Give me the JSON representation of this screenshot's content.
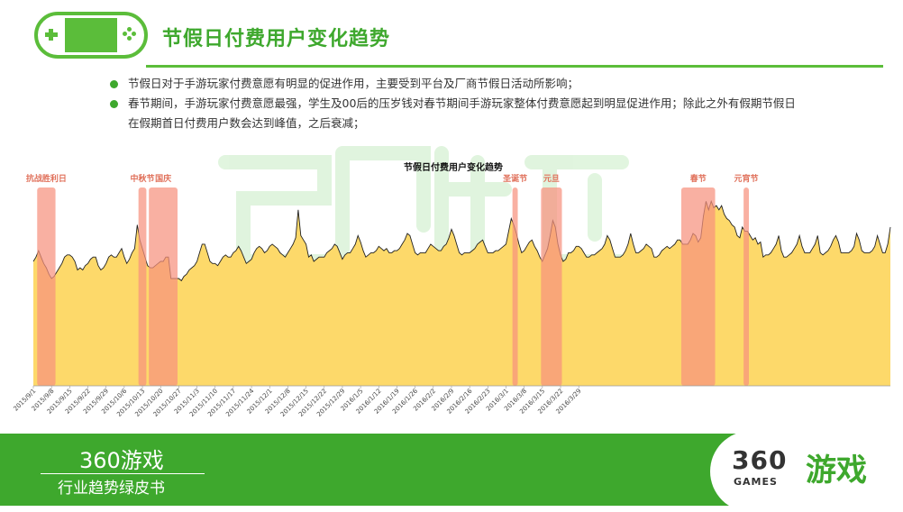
{
  "header": {
    "title": "节假日付费用户变化趋势",
    "bullets": [
      "节假日对于手游玩家付费意愿有明显的促进作用，主要受到平台及厂商节假日活动所影响；",
      "春节期间，手游玩家付费意愿最强，学生及00后的压岁钱对春节期间手游玩家整体付费意愿起到明显促进作用；除此之外有假期节假日",
      "在假期首日付费用户数会达到峰值，之后衰减；"
    ]
  },
  "chart_data": {
    "type": "area",
    "title": "节假日付费用户变化趋势",
    "xlabel": "",
    "ylabel": "",
    "x_ticks": [
      "2015/9/1",
      "2015/9/8",
      "2015/9/15",
      "2015/9/22",
      "2015/9/29",
      "2015/10/6",
      "2015/10/13",
      "2015/10/20",
      "2015/10/27",
      "2015/11/3",
      "2015/11/10",
      "2015/11/17",
      "2015/11/24",
      "2015/12/1",
      "2015/12/8",
      "2015/12/15",
      "2015/12/22",
      "2015/12/29",
      "2016/1/5",
      "2016/1/12",
      "2016/1/19",
      "2016/1/26",
      "2016/2/2",
      "2016/2/9",
      "2016/2/16",
      "2016/2/23",
      "2016/3/1",
      "2016/3/8",
      "2016/3/15",
      "2016/3/22",
      "2016/3/29"
    ],
    "start_date": "2015-09-01",
    "values": [
      58,
      60,
      63,
      60,
      57,
      55,
      52,
      50,
      51,
      53,
      55,
      57,
      60,
      61,
      61,
      60,
      58,
      54,
      55,
      54,
      56,
      57,
      59,
      60,
      60,
      56,
      54,
      55,
      57,
      60,
      61,
      60,
      60,
      62,
      64,
      60,
      57,
      59,
      62,
      64,
      75,
      68,
      64,
      60,
      56,
      55,
      55,
      56,
      57,
      58,
      58,
      60,
      60,
      50,
      50,
      50,
      50,
      49,
      51,
      52,
      54,
      55,
      56,
      58,
      62,
      66,
      66,
      62,
      58,
      57,
      57,
      56,
      58,
      60,
      61,
      60,
      60,
      62,
      63,
      65,
      63,
      60,
      57,
      58,
      59,
      62,
      64,
      65,
      64,
      62,
      63,
      65,
      66,
      65,
      64,
      62,
      61,
      60,
      62,
      64,
      66,
      69,
      82,
      70,
      68,
      66,
      60,
      61,
      58,
      59,
      60,
      60,
      60,
      62,
      63,
      64,
      66,
      65,
      62,
      59,
      61,
      62,
      62,
      64,
      66,
      70,
      67,
      63,
      60,
      61,
      62,
      62,
      63,
      65,
      64,
      63,
      64,
      62,
      62,
      63,
      63,
      64,
      66,
      68,
      71,
      70,
      66,
      62,
      61,
      62,
      62,
      62,
      64,
      66,
      65,
      64,
      63,
      63,
      65,
      66,
      69,
      73,
      70,
      66,
      62,
      61,
      62,
      62,
      62,
      63,
      64,
      66,
      67,
      68,
      65,
      62,
      62,
      62,
      63,
      63,
      64,
      65,
      66,
      72,
      78,
      75,
      71,
      66,
      62,
      63,
      65,
      67,
      68,
      65,
      63,
      60,
      58,
      61,
      64,
      70,
      77,
      74,
      66,
      61,
      58,
      59,
      62,
      62,
      63,
      65,
      65,
      64,
      62,
      60,
      60,
      61,
      61,
      62,
      63,
      64,
      66,
      70,
      68,
      64,
      60,
      60,
      60,
      61,
      63,
      66,
      71,
      66,
      62,
      62,
      63,
      64,
      66,
      65,
      64,
      60,
      60,
      61,
      63,
      64,
      65,
      64,
      65,
      66,
      68,
      68,
      66,
      66,
      66,
      68,
      71,
      70,
      67,
      69,
      79,
      86,
      82,
      86,
      83,
      84,
      82,
      84,
      80,
      78,
      77,
      75,
      74,
      70,
      69,
      74,
      72,
      72,
      70,
      68,
      69,
      66,
      67,
      60,
      61,
      61,
      62,
      64,
      66,
      70,
      63,
      60,
      60,
      61,
      62,
      64,
      66,
      70,
      65,
      62,
      62,
      62,
      64,
      66,
      70,
      62,
      61,
      62,
      63,
      65,
      68,
      70,
      67,
      62,
      62,
      62,
      62,
      63,
      65,
      71,
      68,
      63,
      62,
      62,
      62,
      63,
      65,
      70,
      66,
      62,
      62,
      66,
      74
    ],
    "ylim": [
      0,
      100
    ],
    "holidays": [
      {
        "label": "抗战胜利日",
        "start": 2,
        "end": 8
      },
      {
        "label": "中秋节",
        "start": 41,
        "end": 43
      },
      {
        "label": "国庆",
        "start": 45,
        "end": 55
      },
      {
        "label": "圣诞节",
        "start": 185,
        "end": 186
      },
      {
        "label": "元旦",
        "start": 196,
        "end": 203
      },
      {
        "label": "春节",
        "start": 250,
        "end": 262
      },
      {
        "label": "元宵节",
        "start": 274,
        "end": 275
      }
    ],
    "colors": {
      "fill": "#fdd96a",
      "line": "#222222",
      "band": "#f7917e"
    },
    "grid": false,
    "legend": "none"
  },
  "watermark": {
    "text": "360游戏"
  },
  "footer": {
    "brand": "360游戏",
    "subtitle": "行业趋势绿皮书",
    "logo_num": "360",
    "logo_games": "GAMES",
    "logo_cn": "游戏"
  }
}
